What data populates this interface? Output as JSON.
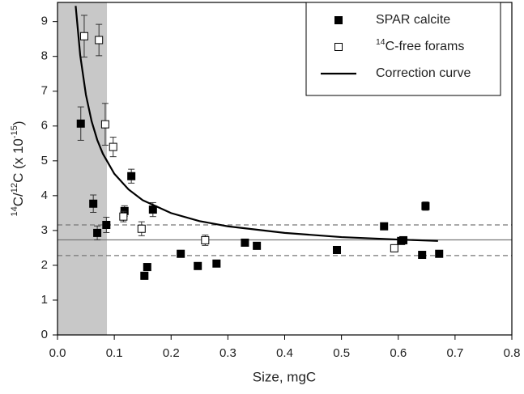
{
  "chart_data": {
    "type": "scatter",
    "x_label": "Size, mgC",
    "y_label": [
      {
        "text": "14",
        "sup": true
      },
      {
        "text": "C/"
      },
      {
        "text": "12",
        "sup": true
      },
      {
        "text": "C (x 10"
      },
      {
        "text": "-15",
        "sup": true
      },
      {
        "text": ")"
      }
    ],
    "xlim": [
      0,
      0.8
    ],
    "ylim": [
      0,
      9.55
    ],
    "xticks": [
      {
        "value": 0,
        "label": "0.0"
      },
      0.1,
      0.2,
      0.3,
      0.4,
      0.5,
      0.6,
      0.7,
      0.8
    ],
    "yticks": [
      0,
      1,
      2,
      3,
      4,
      5,
      6,
      7,
      8,
      9
    ],
    "shade": [
      0,
      0.087
    ],
    "shade_color": "#c8c8c8",
    "hlines": [
      {
        "value": 2.73,
        "style": "solid"
      },
      {
        "value": 3.16,
        "style": "dashed"
      },
      {
        "value": 2.28,
        "style": "dashed"
      }
    ],
    "legend": "top-right",
    "series": [
      {
        "name": [
          {
            "text": "SPAR calcite"
          }
        ],
        "type": "scatter",
        "marker": "filled",
        "color": "#000000",
        "x": [
          0.041,
          0.063,
          0.07,
          0.086,
          0.118,
          0.13,
          0.168,
          0.153,
          0.158,
          0.217,
          0.247,
          0.28,
          0.33,
          0.351,
          0.492,
          0.575,
          0.605,
          0.609,
          0.642,
          0.648,
          0.672
        ],
        "values": [
          6.07,
          3.77,
          2.93,
          3.16,
          3.56,
          4.56,
          3.6,
          1.7,
          1.95,
          2.33,
          1.98,
          2.05,
          2.65,
          2.56,
          2.44,
          3.12,
          2.7,
          2.72,
          2.3,
          3.7,
          2.33
        ],
        "errors": [
          0.48,
          0.25,
          0.2,
          0.22,
          0.15,
          0.2,
          0.2,
          0.1,
          0.1,
          0.1,
          0.1,
          0.08,
          0.08,
          0.1,
          0.08,
          0.08,
          0.08,
          0.08,
          0.08,
          0.12,
          0.08
        ]
      },
      {
        "name": [
          {
            "text": "14",
            "sup": true
          },
          {
            "text": "C-free forams"
          }
        ],
        "type": "scatter",
        "marker": "open",
        "color": "#000000",
        "x": [
          0.047,
          0.073,
          0.084,
          0.098,
          0.116,
          0.148,
          0.26,
          0.593
        ],
        "values": [
          8.58,
          8.47,
          6.05,
          5.4,
          3.4,
          3.05,
          2.72,
          2.49
        ],
        "errors": [
          0.6,
          0.45,
          0.6,
          0.28,
          0.15,
          0.2,
          0.15,
          0.1
        ]
      },
      {
        "name": [
          {
            "text": "Correction curve"
          }
        ],
        "type": "line",
        "color": "#000000",
        "x": [
          0.032,
          0.04,
          0.05,
          0.06,
          0.07,
          0.08,
          0.1,
          0.125,
          0.15,
          0.2,
          0.25,
          0.3,
          0.4,
          0.5,
          0.6,
          0.67
        ],
        "values": [
          9.45,
          8.03,
          6.9,
          6.14,
          5.6,
          5.2,
          4.63,
          4.18,
          3.87,
          3.5,
          3.27,
          3.12,
          2.93,
          2.81,
          2.74,
          2.7
        ]
      }
    ]
  }
}
